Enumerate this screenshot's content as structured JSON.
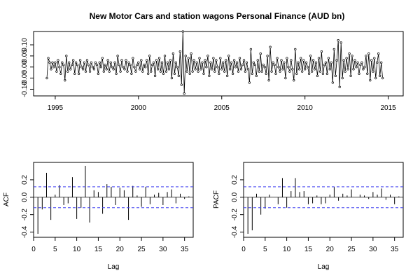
{
  "chart_data": [
    {
      "type": "line",
      "title": "New Motor Cars and station wagons Personal Finance (AUD bn)",
      "xlabel": "",
      "ylabel": "",
      "x_start": 1994.5,
      "x_step": 0.08333,
      "xlim": [
        1993.7,
        2015.9
      ],
      "ylim": [
        -0.13,
        0.16
      ],
      "x_ticks": [
        1995,
        2000,
        2005,
        2010,
        2015
      ],
      "y_ticks": [
        -0.1,
        -0.05,
        0.0,
        0.05,
        0.1
      ],
      "x_tick_labels": [
        "1995",
        "2000",
        "2005",
        "2010",
        "2015"
      ],
      "y_tick_labels": [
        "-0.10",
        "-0.05",
        "0.00",
        "0.05",
        "0.10"
      ],
      "series": [
        {
          "marker": "circle",
          "values": [
            -0.05,
            0.04,
            0.02,
            -0.01,
            0.02,
            0.0,
            0.02,
            -0.02,
            0.03,
            0.0,
            -0.03,
            0.02,
            0.01,
            -0.06,
            0.05,
            -0.02,
            0.02,
            -0.01,
            0.01,
            0.03,
            -0.03,
            0.02,
            0.01,
            -0.03,
            0.03,
            0.0,
            -0.01,
            0.02,
            -0.02,
            0.03,
            0.01,
            -0.02,
            0.02,
            0.0,
            -0.01,
            0.02,
            0.01,
            -0.03,
            0.02,
            0.0,
            0.04,
            -0.02,
            0.01,
            -0.01,
            0.03,
            -0.02,
            0.02,
            0.0,
            -0.01,
            0.02,
            -0.03,
            0.05,
            0.01,
            -0.02,
            0.03,
            0.0,
            -0.01,
            0.03,
            -0.02,
            0.02,
            0.01,
            -0.03,
            0.04,
            0.0,
            -0.02,
            0.01,
            0.02,
            -0.01,
            0.03,
            -0.02,
            0.01,
            0.0,
            0.03,
            -0.03,
            0.05,
            -0.02,
            0.01,
            0.02,
            -0.04,
            0.03,
            -0.01,
            0.04,
            -0.02,
            0.02,
            -0.03,
            0.05,
            -0.02,
            0.02,
            -0.01,
            0.03,
            -0.05,
            0.06,
            -0.03,
            0.02,
            0.0,
            -0.04,
            0.07,
            -0.08,
            0.16,
            -0.12,
            0.05,
            -0.02,
            0.04,
            -0.03,
            0.06,
            -0.02,
            0.03,
            -0.01,
            0.02,
            -0.02,
            0.04,
            -0.01,
            0.02,
            -0.03,
            0.03,
            0.0,
            0.05,
            -0.04,
            0.02,
            -0.01,
            0.04,
            -0.02,
            0.03,
            0.0,
            -0.03,
            0.04,
            -0.01,
            0.02,
            -0.02,
            0.03,
            -0.04,
            0.05,
            -0.01,
            0.02,
            -0.03,
            0.03,
            0.0,
            0.02,
            -0.02,
            0.04,
            -0.01,
            0.01,
            0.03,
            -0.02,
            0.02,
            -0.01,
            -0.07,
            0.08,
            -0.03,
            0.02,
            0.01,
            -0.04,
            0.03,
            -0.02,
            0.06,
            -0.02,
            0.01,
            0.0,
            -0.03,
            0.05,
            -0.06,
            0.09,
            -0.02,
            0.02,
            0.01,
            -0.03,
            0.04,
            0.0,
            -0.02,
            0.03,
            -0.01,
            0.02,
            -0.05,
            0.04,
            0.0,
            -0.02,
            0.03,
            -0.01,
            -0.06,
            0.08,
            -0.03,
            0.02,
            -0.01,
            0.04,
            -0.02,
            0.03,
            -0.01,
            0.02,
            0.0,
            -0.03,
            0.05,
            -0.02,
            0.03,
            -0.01,
            0.02,
            -0.04,
            0.04,
            -0.02,
            0.07,
            -0.03,
            0.01,
            0.02,
            -0.03,
            0.04,
            -0.01,
            0.02,
            -0.07,
            0.08,
            -0.04,
            0.03,
            0.12,
            -0.09,
            0.11,
            -0.05,
            0.03,
            -0.02,
            0.04,
            -0.01,
            0.06,
            -0.04,
            0.05,
            -0.01,
            0.03,
            0.0,
            0.02,
            -0.03,
            0.01,
            0.02,
            -0.01,
            0.0,
            0.05,
            -0.03,
            0.06,
            -0.06,
            0.03,
            -0.02,
            0.04,
            -0.05,
            0.02,
            0.06,
            -0.04,
            0.02,
            -0.05
          ]
        }
      ]
    },
    {
      "type": "bar",
      "xlabel": "Lag",
      "ylabel": "ACF",
      "xlim": [
        0,
        37
      ],
      "ylim": [
        -0.46,
        0.4
      ],
      "x_ticks": [
        0,
        5,
        10,
        15,
        20,
        25,
        30,
        35
      ],
      "y_ticks": [
        -0.4,
        -0.2,
        0.0,
        0.2
      ],
      "x_tick_labels": [
        "0",
        "5",
        "10",
        "15",
        "20",
        "25",
        "30",
        "35"
      ],
      "y_tick_labels": [
        "-0.4",
        "-0.2",
        "0.0",
        "0.2"
      ],
      "confidence_bounds": [
        -0.12,
        0.12
      ],
      "lags": [
        1,
        2,
        3,
        4,
        5,
        6,
        7,
        8,
        9,
        10,
        11,
        12,
        13,
        14,
        15,
        16,
        17,
        18,
        19,
        20,
        21,
        22,
        23,
        24,
        25,
        26,
        27,
        28,
        29,
        30,
        31,
        32,
        33,
        34,
        35,
        36
      ],
      "values": [
        -0.42,
        -0.14,
        0.28,
        -0.26,
        0.03,
        0.14,
        -0.09,
        -0.07,
        0.23,
        -0.25,
        -0.12,
        0.36,
        -0.29,
        0.08,
        0.06,
        -0.19,
        0.15,
        0.12,
        -0.09,
        0.11,
        0.08,
        -0.26,
        0.13,
        0.02,
        -0.11,
        0.12,
        -0.08,
        0.03,
        0.05,
        -0.09,
        0.06,
        0.09,
        -0.07,
        0.04,
        -0.02,
        0.01
      ]
    },
    {
      "type": "bar",
      "xlabel": "Lag",
      "ylabel": "PACF",
      "xlim": [
        0,
        37
      ],
      "ylim": [
        -0.46,
        0.4
      ],
      "x_ticks": [
        0,
        5,
        10,
        15,
        20,
        25,
        30,
        35
      ],
      "y_ticks": [
        -0.4,
        -0.2,
        0.0,
        0.2
      ],
      "x_tick_labels": [
        "0",
        "5",
        "10",
        "15",
        "20",
        "25",
        "30",
        "35"
      ],
      "y_tick_labels": [
        "-0.4",
        "-0.2",
        "0.0",
        "0.2"
      ],
      "confidence_bounds": [
        -0.12,
        0.12
      ],
      "lags": [
        1,
        2,
        3,
        4,
        5,
        6,
        7,
        8,
        9,
        10,
        11,
        12,
        13,
        14,
        15,
        16,
        17,
        18,
        19,
        20,
        21,
        22,
        23,
        24,
        25,
        26,
        27,
        28,
        29,
        30,
        31,
        32,
        33,
        34,
        35,
        36
      ],
      "values": [
        -0.42,
        -0.38,
        0.04,
        -0.2,
        -0.13,
        0.03,
        0.0,
        -0.08,
        0.22,
        -0.12,
        0.07,
        0.22,
        0.06,
        0.07,
        -0.08,
        -0.07,
        0.02,
        -0.08,
        -0.07,
        0.03,
        0.12,
        -0.04,
        0.04,
        0.02,
        0.09,
        0.0,
        0.03,
        0.02,
        -0.02,
        0.06,
        0.03,
        0.1,
        -0.03,
        0.03,
        -0.08,
        0.01
      ]
    }
  ]
}
